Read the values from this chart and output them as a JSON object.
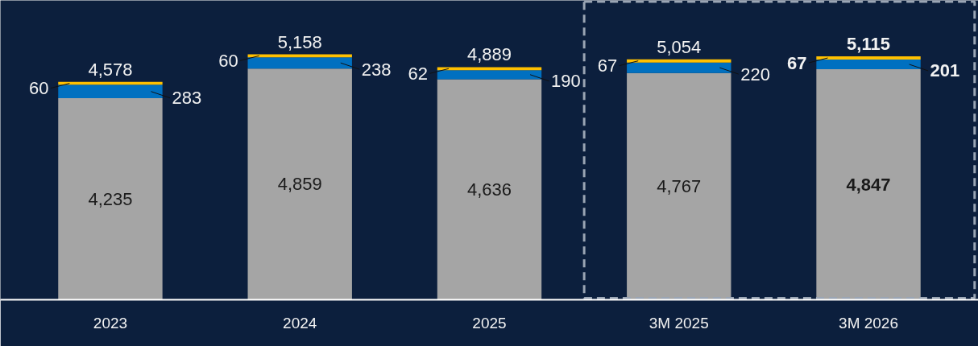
{
  "chart_data": {
    "type": "bar",
    "stacked": true,
    "categories": [
      "2023",
      "2024",
      "2025",
      "3M 2025",
      "3M 2026"
    ],
    "series": [
      {
        "color": "#a5a5a5",
        "values": [
          4235,
          4859,
          4636,
          4767,
          4847
        ],
        "value_labels": [
          "4,235",
          "4,859",
          "4,636",
          "4,767",
          "4,847"
        ]
      },
      {
        "color": "#0070c0",
        "values": [
          283,
          238,
          190,
          220,
          201
        ],
        "value_labels": [
          "283",
          "238",
          "190",
          "220",
          "201"
        ]
      },
      {
        "color": "#ffc000",
        "values": [
          60,
          60,
          62,
          67,
          67
        ],
        "value_labels": [
          "60",
          "60",
          "62",
          "67",
          "67"
        ]
      }
    ],
    "totals": [
      "4,578",
      "5,158",
      "4,889",
      "5,054",
      "5,115"
    ]
  }
}
